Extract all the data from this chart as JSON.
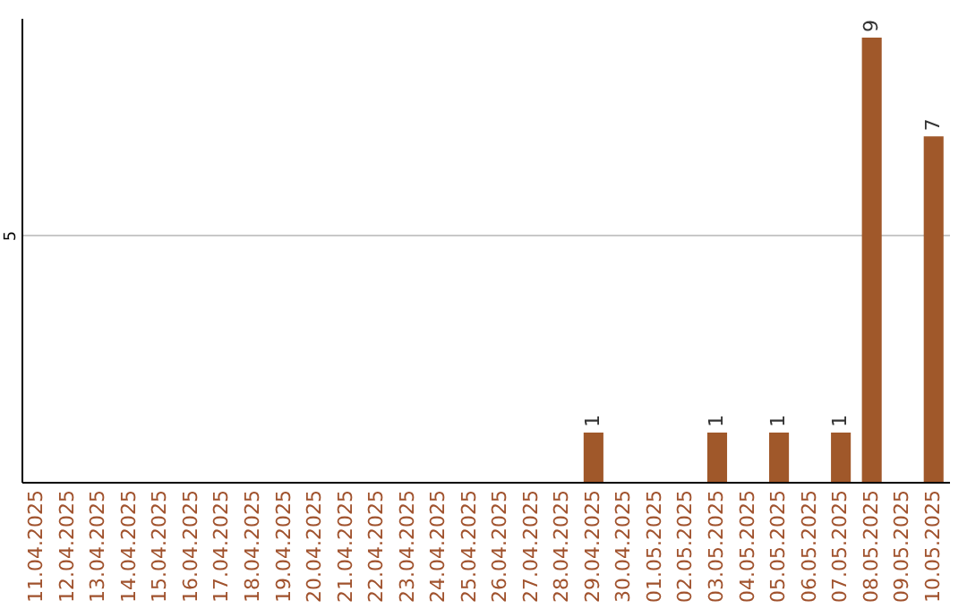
{
  "chart_data": {
    "type": "bar",
    "categories": [
      "11.04.2025",
      "12.04.2025",
      "13.04.2025",
      "14.04.2025",
      "15.04.2025",
      "16.04.2025",
      "17.04.2025",
      "18.04.2025",
      "19.04.2025",
      "20.04.2025",
      "21.04.2025",
      "22.04.2025",
      "23.04.2025",
      "24.04.2025",
      "25.04.2025",
      "26.04.2025",
      "27.04.2025",
      "28.04.2025",
      "29.04.2025",
      "30.04.2025",
      "01.05.2025",
      "02.05.2025",
      "03.05.2025",
      "04.05.2025",
      "05.05.2025",
      "06.05.2025",
      "07.05.2025",
      "08.05.2025",
      "09.05.2025",
      "10.05.2025"
    ],
    "values": [
      null,
      null,
      null,
      null,
      null,
      null,
      null,
      null,
      null,
      null,
      null,
      null,
      null,
      null,
      null,
      null,
      null,
      null,
      1,
      null,
      null,
      null,
      1,
      null,
      1,
      null,
      1,
      9,
      null,
      7
    ],
    "color": "#a0582a",
    "ylim": [
      0,
      9.4
    ],
    "yticks": [
      5
    ],
    "grid": "y",
    "data_labels": true
  }
}
